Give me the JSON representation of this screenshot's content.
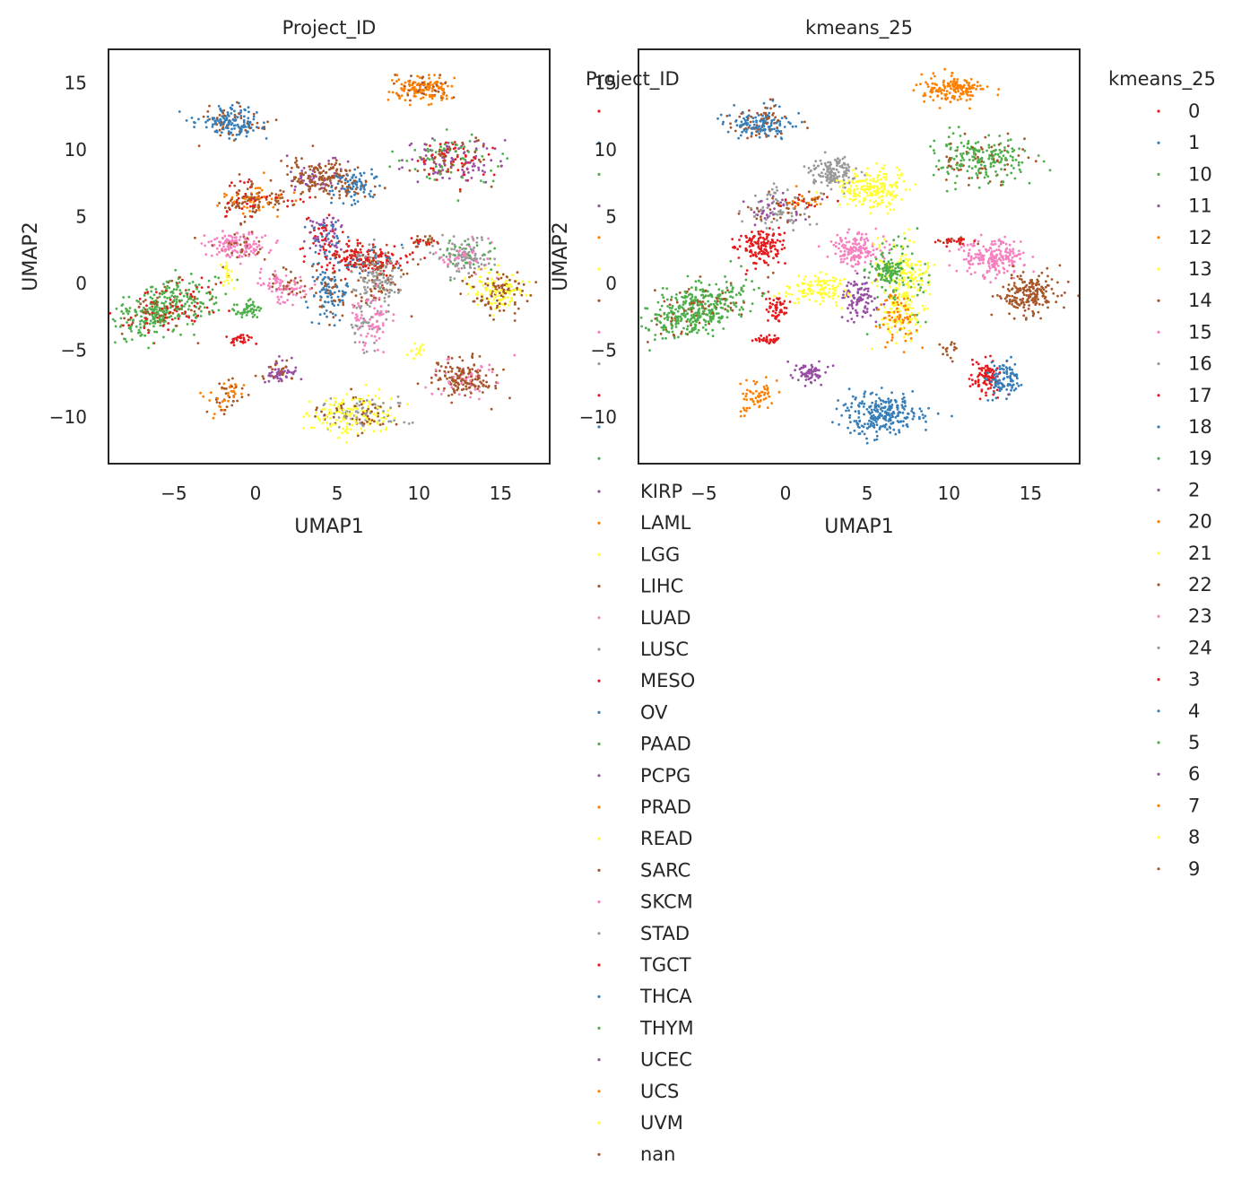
{
  "chart_data": [
    {
      "type": "scatter",
      "title": "Project_ID",
      "xlabel": "UMAP1",
      "ylabel": "UMAP2",
      "xlim": [
        -9,
        18
      ],
      "ylim": [
        -13.5,
        17.5
      ],
      "xticks": [
        -5,
        0,
        5,
        10,
        15
      ],
      "yticks": [
        -10,
        -5,
        0,
        5,
        10,
        15
      ],
      "grid": false,
      "legend": {
        "title": "Project_ID",
        "placement": "outside-right",
        "entries": [
          "KIRP",
          "LAML",
          "LGG",
          "LIHC",
          "LUAD",
          "LUSC",
          "MESO",
          "OV",
          "PAAD",
          "PCPG",
          "PRAD",
          "READ",
          "SARC",
          "SKCM",
          "STAD",
          "TGCT",
          "THCA",
          "THYM",
          "UCEC",
          "UCS",
          "UVM",
          "nan"
        ],
        "marker_colors": [
          "#984ea3",
          "#ff7f00",
          "#ffff33",
          "#a65628",
          "#f781bf",
          "#999999",
          "#e41a1c",
          "#377eb8",
          "#4daf4a",
          "#984ea3",
          "#ff7f00",
          "#ffff33",
          "#a65628",
          "#f781bf",
          "#999999",
          "#e41a1c",
          "#377eb8",
          "#4daf4a",
          "#984ea3",
          "#ff7f00",
          "#ffff33",
          "#a65628"
        ]
      },
      "clusters": [
        {
          "cx": -1.5,
          "cy": 12.0,
          "sx": 1.0,
          "sy": 0.6,
          "n": 180,
          "colors": [
            "#377eb8",
            "#377eb8",
            "#377eb8",
            "#a65628"
          ]
        },
        {
          "cx": 10.2,
          "cy": 14.5,
          "sx": 0.9,
          "sy": 0.5,
          "n": 160,
          "colors": [
            "#ff7f00",
            "#ff7f00",
            "#ff7f00",
            "#a65628"
          ]
        },
        {
          "cx": 12.0,
          "cy": 9.2,
          "sx": 1.5,
          "sy": 0.9,
          "n": 240,
          "colors": [
            "#984ea3",
            "#984ea3",
            "#4daf4a",
            "#a65628",
            "#e41a1c"
          ]
        },
        {
          "cx": 3.8,
          "cy": 8.0,
          "sx": 0.9,
          "sy": 0.7,
          "n": 180,
          "colors": [
            "#a65628",
            "#a65628",
            "#a65628",
            "#984ea3"
          ]
        },
        {
          "cx": 6.1,
          "cy": 7.3,
          "sx": 0.7,
          "sy": 0.6,
          "n": 110,
          "colors": [
            "#377eb8",
            "#377eb8",
            "#a65628"
          ]
        },
        {
          "cx": -0.6,
          "cy": 6.2,
          "sx": 0.8,
          "sy": 0.8,
          "n": 130,
          "colors": [
            "#a65628",
            "#a65628",
            "#e41a1c",
            "#ff7f00"
          ]
        },
        {
          "cx": -1.0,
          "cy": 2.8,
          "sx": 1.0,
          "sy": 0.5,
          "n": 160,
          "colors": [
            "#f781bf",
            "#f781bf",
            "#f781bf",
            "#a65628"
          ]
        },
        {
          "cx": 4.2,
          "cy": 3.6,
          "sx": 0.6,
          "sy": 0.8,
          "n": 110,
          "colors": [
            "#984ea3",
            "#984ea3",
            "#e41a1c",
            "#377eb8"
          ]
        },
        {
          "cx": 6.4,
          "cy": 1.8,
          "sx": 1.3,
          "sy": 0.6,
          "n": 230,
          "colors": [
            "#e41a1c",
            "#e41a1c",
            "#e41a1c",
            "#377eb8",
            "#a65628"
          ]
        },
        {
          "cx": 7.5,
          "cy": 0.0,
          "sx": 0.8,
          "sy": 1.0,
          "n": 170,
          "colors": [
            "#999999",
            "#999999",
            "#999999",
            "#a65628"
          ]
        },
        {
          "cx": 4.6,
          "cy": -0.8,
          "sx": 0.6,
          "sy": 1.1,
          "n": 110,
          "colors": [
            "#377eb8",
            "#377eb8",
            "#a65628"
          ]
        },
        {
          "cx": 6.9,
          "cy": -2.8,
          "sx": 0.6,
          "sy": 0.9,
          "n": 100,
          "colors": [
            "#f781bf",
            "#f781bf",
            "#999999"
          ]
        },
        {
          "cx": 1.8,
          "cy": -0.2,
          "sx": 0.8,
          "sy": 0.6,
          "n": 100,
          "colors": [
            "#f781bf",
            "#f781bf",
            "#a65628"
          ]
        },
        {
          "cx": -5.5,
          "cy": -2.0,
          "sx": 1.7,
          "sy": 0.9,
          "n": 420,
          "rot": 0.45,
          "colors": [
            "#4daf4a",
            "#4daf4a",
            "#4daf4a",
            "#4daf4a",
            "#a65628",
            "#e41a1c"
          ]
        },
        {
          "cx": -0.5,
          "cy": -2.0,
          "sx": 0.4,
          "sy": 0.4,
          "n": 50,
          "colors": [
            "#4daf4a"
          ]
        },
        {
          "cx": -1.0,
          "cy": -4.2,
          "sx": 0.4,
          "sy": 0.2,
          "n": 30,
          "colors": [
            "#e41a1c"
          ]
        },
        {
          "cx": 1.5,
          "cy": -6.7,
          "sx": 0.5,
          "sy": 0.4,
          "n": 70,
          "colors": [
            "#984ea3",
            "#984ea3",
            "#a65628"
          ]
        },
        {
          "cx": -1.8,
          "cy": -8.5,
          "sx": 0.5,
          "sy": 0.8,
          "n": 60,
          "rot": -0.8,
          "colors": [
            "#ff7f00",
            "#a65628"
          ]
        },
        {
          "cx": 6.0,
          "cy": -9.8,
          "sx": 1.3,
          "sy": 0.8,
          "n": 260,
          "colors": [
            "#ffff33",
            "#ffff33",
            "#ffff33",
            "#a65628",
            "#999999"
          ]
        },
        {
          "cx": 12.7,
          "cy": -7.1,
          "sx": 1.0,
          "sy": 0.7,
          "n": 200,
          "colors": [
            "#a65628",
            "#a65628",
            "#a65628",
            "#f781bf"
          ]
        },
        {
          "cx": 12.8,
          "cy": 2.0,
          "sx": 0.9,
          "sy": 0.6,
          "n": 170,
          "colors": [
            "#999999",
            "#999999",
            "#999999",
            "#4daf4a",
            "#f781bf"
          ]
        },
        {
          "cx": 14.8,
          "cy": -0.6,
          "sx": 0.9,
          "sy": 0.8,
          "n": 190,
          "colors": [
            "#ffff33",
            "#ffff33",
            "#a65628",
            "#a65628"
          ]
        },
        {
          "cx": 10.3,
          "cy": 3.1,
          "sx": 0.5,
          "sy": 0.2,
          "n": 30,
          "colors": [
            "#e41a1c",
            "#a65628"
          ]
        },
        {
          "cx": 1.5,
          "cy": 6.2,
          "sx": 0.8,
          "sy": 0.3,
          "n": 40,
          "colors": [
            "#ff7f00",
            "#e41a1c",
            "#a65628"
          ]
        },
        {
          "cx": -1.7,
          "cy": 0.6,
          "sx": 0.2,
          "sy": 0.6,
          "n": 20,
          "colors": [
            "#ffff33"
          ]
        },
        {
          "cx": 9.9,
          "cy": -5.0,
          "sx": 0.3,
          "sy": 0.3,
          "n": 15,
          "colors": [
            "#ffff33"
          ]
        }
      ]
    },
    {
      "type": "scatter",
      "title": "kmeans_25",
      "xlabel": "UMAP1",
      "ylabel": "UMAP2",
      "xlim": [
        -9,
        18
      ],
      "ylim": [
        -13.5,
        17.5
      ],
      "xticks": [
        -5,
        0,
        5,
        10,
        15
      ],
      "yticks": [
        -10,
        -5,
        0,
        5,
        10,
        15
      ],
      "grid": false,
      "legend": {
        "title": "kmeans_25",
        "placement": "outside-right",
        "entries": [
          "0",
          "1",
          "10",
          "11",
          "12",
          "13",
          "14",
          "15",
          "16",
          "17",
          "18",
          "19",
          "2",
          "20",
          "21",
          "22",
          "23",
          "24",
          "3",
          "4",
          "5",
          "6",
          "7",
          "8",
          "9"
        ],
        "marker_colors": [
          "#e41a1c",
          "#377eb8",
          "#4daf4a",
          "#984ea3",
          "#ff7f00",
          "#ffff33",
          "#a65628",
          "#f781bf",
          "#999999",
          "#e41a1c",
          "#377eb8",
          "#4daf4a",
          "#984ea3",
          "#ff7f00",
          "#ffff33",
          "#a65628",
          "#f781bf",
          "#999999",
          "#e41a1c",
          "#377eb8",
          "#4daf4a",
          "#984ea3",
          "#ff7f00",
          "#ffff33",
          "#a65628"
        ]
      },
      "clusters": [
        {
          "cx": -1.5,
          "cy": 12.0,
          "sx": 1.0,
          "sy": 0.6,
          "n": 180,
          "colors": [
            "#377eb8",
            "#377eb8",
            "#377eb8",
            "#a65628"
          ]
        },
        {
          "cx": 10.2,
          "cy": 14.5,
          "sx": 0.9,
          "sy": 0.5,
          "n": 160,
          "colors": [
            "#ff7f00"
          ]
        },
        {
          "cx": 12.0,
          "cy": 9.2,
          "sx": 1.5,
          "sy": 0.9,
          "n": 240,
          "colors": [
            "#4daf4a",
            "#4daf4a",
            "#4daf4a",
            "#a65628"
          ]
        },
        {
          "cx": 3.0,
          "cy": 8.3,
          "sx": 0.7,
          "sy": 0.6,
          "n": 140,
          "colors": [
            "#999999"
          ]
        },
        {
          "cx": 5.2,
          "cy": 7.0,
          "sx": 1.1,
          "sy": 0.7,
          "n": 200,
          "colors": [
            "#ffff33"
          ]
        },
        {
          "cx": -0.6,
          "cy": 5.6,
          "sx": 1.0,
          "sy": 0.8,
          "n": 130,
          "colors": [
            "#999999",
            "#999999",
            "#984ea3",
            "#a65628"
          ]
        },
        {
          "cx": -1.5,
          "cy": 2.7,
          "sx": 0.7,
          "sy": 0.7,
          "n": 140,
          "colors": [
            "#e41a1c"
          ]
        },
        {
          "cx": 4.4,
          "cy": 2.6,
          "sx": 0.8,
          "sy": 0.6,
          "n": 150,
          "colors": [
            "#f781bf"
          ]
        },
        {
          "cx": 7.2,
          "cy": 0.2,
          "sx": 0.8,
          "sy": 1.6,
          "n": 260,
          "colors": [
            "#ffff33",
            "#ffff33",
            "#ffff33",
            "#4daf4a"
          ]
        },
        {
          "cx": 6.2,
          "cy": 1.0,
          "sx": 0.5,
          "sy": 0.5,
          "n": 90,
          "colors": [
            "#4daf4a"
          ]
        },
        {
          "cx": 4.6,
          "cy": -1.2,
          "sx": 0.5,
          "sy": 0.8,
          "n": 100,
          "colors": [
            "#984ea3"
          ]
        },
        {
          "cx": 6.9,
          "cy": -2.8,
          "sx": 0.6,
          "sy": 0.9,
          "n": 110,
          "colors": [
            "#ff7f00",
            "#ffff33",
            "#ff7f00"
          ]
        },
        {
          "cx": 2.0,
          "cy": -0.4,
          "sx": 0.9,
          "sy": 0.6,
          "n": 120,
          "colors": [
            "#ffff33"
          ]
        },
        {
          "cx": -5.5,
          "cy": -2.0,
          "sx": 1.7,
          "sy": 0.9,
          "n": 420,
          "rot": 0.45,
          "colors": [
            "#4daf4a",
            "#4daf4a",
            "#4daf4a",
            "#4daf4a",
            "#a65628"
          ]
        },
        {
          "cx": -0.5,
          "cy": -2.0,
          "sx": 0.4,
          "sy": 0.4,
          "n": 50,
          "colors": [
            "#e41a1c"
          ]
        },
        {
          "cx": -1.0,
          "cy": -4.2,
          "sx": 0.4,
          "sy": 0.2,
          "n": 30,
          "colors": [
            "#e41a1c"
          ]
        },
        {
          "cx": 1.5,
          "cy": -6.7,
          "sx": 0.5,
          "sy": 0.4,
          "n": 70,
          "colors": [
            "#984ea3"
          ]
        },
        {
          "cx": -1.8,
          "cy": -8.5,
          "sx": 0.5,
          "sy": 0.8,
          "n": 60,
          "rot": -0.8,
          "colors": [
            "#ff7f00"
          ]
        },
        {
          "cx": 6.0,
          "cy": -9.8,
          "sx": 1.3,
          "sy": 0.8,
          "n": 260,
          "colors": [
            "#377eb8"
          ]
        },
        {
          "cx": 12.3,
          "cy": -7.1,
          "sx": 0.5,
          "sy": 0.6,
          "n": 100,
          "colors": [
            "#e41a1c"
          ]
        },
        {
          "cx": 13.5,
          "cy": -7.1,
          "sx": 0.5,
          "sy": 0.6,
          "n": 100,
          "colors": [
            "#377eb8"
          ]
        },
        {
          "cx": 12.8,
          "cy": 1.8,
          "sx": 1.0,
          "sy": 0.7,
          "n": 200,
          "colors": [
            "#f781bf"
          ]
        },
        {
          "cx": 14.8,
          "cy": -0.8,
          "sx": 0.9,
          "sy": 0.8,
          "n": 190,
          "colors": [
            "#a65628"
          ]
        },
        {
          "cx": 10.3,
          "cy": 3.1,
          "sx": 0.5,
          "sy": 0.2,
          "n": 30,
          "colors": [
            "#e41a1c",
            "#a65628"
          ]
        },
        {
          "cx": 1.5,
          "cy": 6.2,
          "sx": 0.8,
          "sy": 0.3,
          "n": 40,
          "colors": [
            "#ff7f00",
            "#e41a1c",
            "#a65628"
          ]
        },
        {
          "cx": 9.9,
          "cy": -5.0,
          "sx": 0.3,
          "sy": 0.3,
          "n": 15,
          "colors": [
            "#a65628"
          ]
        }
      ]
    }
  ]
}
